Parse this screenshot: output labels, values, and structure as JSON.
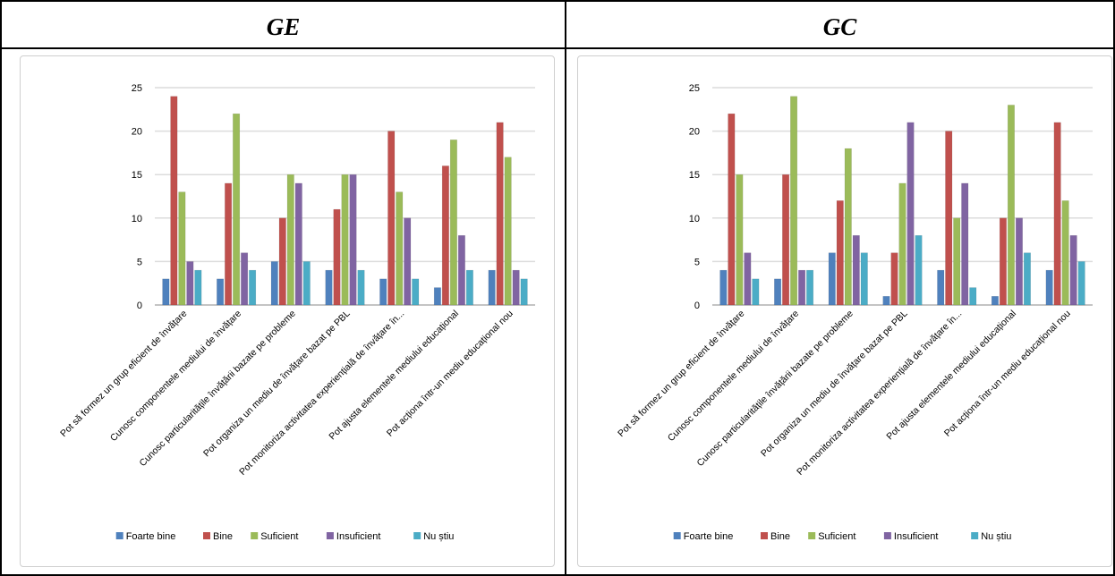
{
  "panels": [
    {
      "title": "GE"
    },
    {
      "title": "GC"
    }
  ],
  "colors": {
    "Foarte bine": "#4F81BD",
    "Bine": "#C0504D",
    "Suficient": "#9BBB59",
    "Insuficient": "#8064A2",
    "Nu știu": "#4BACC6"
  },
  "chart_data": [
    {
      "type": "bar",
      "categories": [
        "Pot să formez un grup eficient de învățare",
        "Cunosc componentele mediului de învățare",
        "Cunosc particularitățile învățării bazate pe probleme",
        "Pot organiza un mediu de învățare bazat pe PBL",
        "Pot monitoriza activitatea experiențială de învățare în...",
        "Pot ajusta elementele mediului educațional",
        "Pot acționa într-un mediu educațional nou"
      ],
      "series": [
        {
          "name": "Foarte bine",
          "values": [
            3,
            3,
            5,
            4,
            3,
            2,
            4
          ]
        },
        {
          "name": "Bine",
          "values": [
            24,
            14,
            10,
            11,
            20,
            16,
            21
          ]
        },
        {
          "name": "Suficient",
          "values": [
            13,
            22,
            15,
            15,
            13,
            19,
            17
          ]
        },
        {
          "name": "Insuficient",
          "values": [
            5,
            6,
            14,
            15,
            10,
            8,
            4
          ]
        },
        {
          "name": "Nu știu",
          "values": [
            4,
            4,
            5,
            4,
            3,
            4,
            3
          ]
        }
      ],
      "yticks": [
        "0",
        "5",
        "10",
        "15",
        "20",
        "25"
      ],
      "ylim": [
        0,
        25
      ],
      "grid": true,
      "legend": "bottom"
    },
    {
      "type": "bar",
      "categories": [
        "Pot să formez un grup eficient de învățare",
        "Cunosc componentele mediului de învățare",
        "Cunosc particularitățile învățării bazate pe probleme",
        "Pot organiza un mediu de învățare bazat pe PBL",
        "Pot monitoriza activitatea experiențială de învățare în...",
        "Pot ajusta elementele mediului educațional",
        "Pot acționa într-un mediu educațional nou"
      ],
      "series": [
        {
          "name": "Foarte bine",
          "values": [
            4,
            3,
            6,
            1,
            4,
            1,
            4
          ]
        },
        {
          "name": "Bine",
          "values": [
            22,
            15,
            12,
            6,
            20,
            10,
            21
          ]
        },
        {
          "name": "Suficient",
          "values": [
            15,
            24,
            18,
            14,
            10,
            23,
            12
          ]
        },
        {
          "name": "Insuficient",
          "values": [
            6,
            4,
            8,
            21,
            14,
            10,
            8
          ]
        },
        {
          "name": "Nu știu",
          "values": [
            3,
            4,
            6,
            8,
            2,
            6,
            5
          ]
        }
      ],
      "yticks": [
        "0",
        "5",
        "10",
        "15",
        "20",
        "25"
      ],
      "ylim": [
        0,
        25
      ],
      "grid": true,
      "legend": "bottom"
    }
  ]
}
